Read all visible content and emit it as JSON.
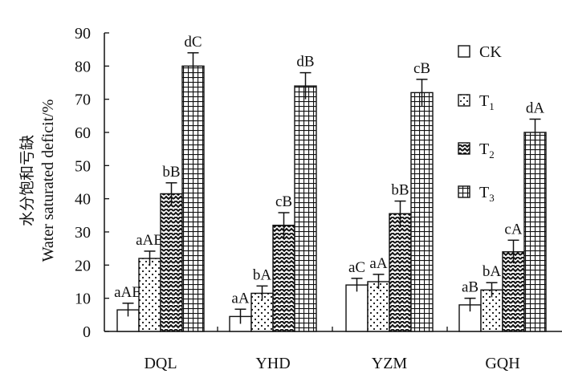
{
  "chart_data": {
    "type": "bar",
    "ylabel_cn": "水分饱和亏缺",
    "ylabel_en": "Water saturated deficit/%",
    "ylim": [
      0,
      90
    ],
    "yticks": [
      0,
      10,
      20,
      30,
      40,
      50,
      60,
      70,
      80,
      90
    ],
    "categories": [
      "DQL",
      "YHD",
      "YZM",
      "GQH"
    ],
    "series": [
      {
        "name": "CK",
        "sub": "",
        "pattern": "blank",
        "values": [
          6.5,
          4.5,
          14,
          8
        ],
        "errors": [
          2,
          2.2,
          2,
          2
        ],
        "labels": [
          "aAB",
          "aA",
          "aC",
          "aB"
        ]
      },
      {
        "name": "T",
        "sub": "1",
        "pattern": "dots",
        "values": [
          22,
          11.5,
          15,
          12.5
        ],
        "errors": [
          2.2,
          2.2,
          2.2,
          2.2
        ],
        "labels": [
          "aAB",
          "bA",
          "aA",
          "bA"
        ]
      },
      {
        "name": "T",
        "sub": "2",
        "pattern": "waves",
        "values": [
          41.5,
          32,
          35.5,
          24
        ],
        "errors": [
          3.3,
          3.8,
          3.8,
          3.5
        ],
        "labels": [
          "bB",
          "cB",
          "bB",
          "cA"
        ]
      },
      {
        "name": "T",
        "sub": "3",
        "pattern": "grid",
        "values": [
          80,
          74,
          72,
          60
        ],
        "errors": [
          4,
          4,
          4,
          4
        ],
        "labels": [
          "dC",
          "dB",
          "cB",
          "dA"
        ]
      }
    ],
    "legend_position": "right",
    "grid": false
  }
}
